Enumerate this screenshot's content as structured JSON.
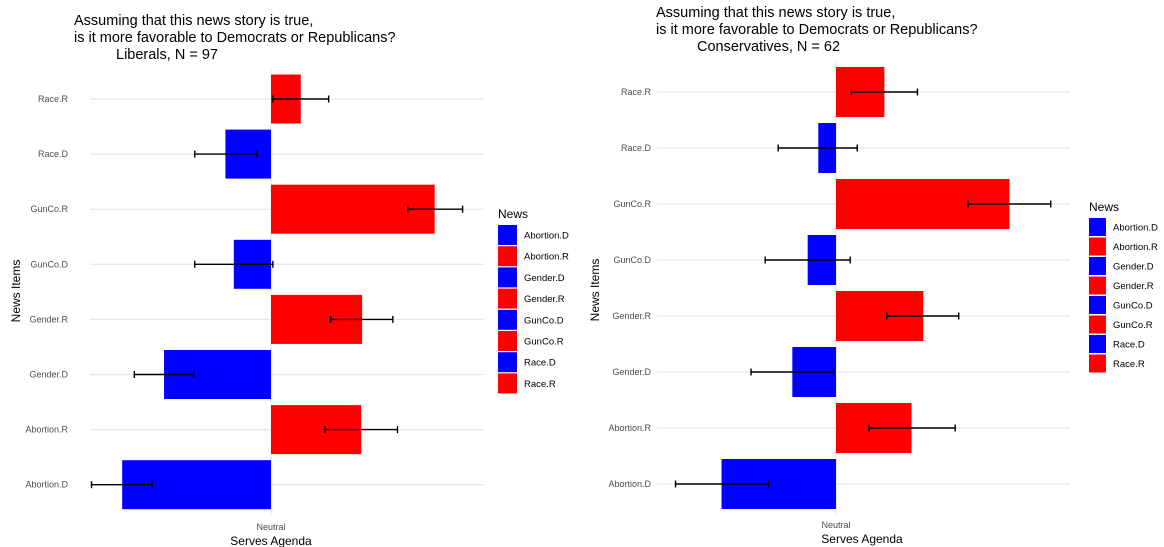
{
  "colors": {
    "D": "#0000FF",
    "R": "#FF0000",
    "grid": "#E6E6E6",
    "axis_text": "#4D4D4D",
    "errorbar": "#000000"
  },
  "chart_data": [
    {
      "type": "bar",
      "orientation": "horizontal",
      "title": [
        "Assuming that this news story is true,",
        "is it more favorable to Democrats or Republicans?",
        "Liberals, N = 97"
      ],
      "xlabel": "Serves Agenda",
      "ylabel": "News Items",
      "x_tick_labels": [
        "Neutral"
      ],
      "xlim": [
        -2.0,
        2.4
      ],
      "categories": [
        "Abortion.D",
        "Abortion.R",
        "Gender.D",
        "Gender.R",
        "GunCo.D",
        "GunCo.R",
        "Race.D",
        "Race.R"
      ],
      "values": [
        -1.6,
        0.97,
        -1.15,
        0.98,
        -0.4,
        1.76,
        -0.49,
        0.32
      ],
      "error_low": [
        -1.93,
        0.58,
        -1.47,
        0.64,
        -0.82,
        1.47,
        -0.82,
        0.02
      ],
      "error_high": [
        -1.28,
        1.36,
        -0.83,
        1.31,
        0.02,
        2.06,
        -0.15,
        0.62
      ],
      "grid": true,
      "legend": {
        "title": "News",
        "placement": "right",
        "entries": [
          "Abortion.D",
          "Abortion.R",
          "Gender.D",
          "Gender.R",
          "GunCo.D",
          "GunCo.R",
          "Race.D",
          "Race.R"
        ]
      }
    },
    {
      "type": "bar",
      "orientation": "horizontal",
      "title": [
        "Assuming that this news story is true,",
        "is it more favorable to Democrats or Republicans?",
        "Conservatives, N = 62"
      ],
      "xlabel": "Serves Agenda",
      "ylabel": "News Items",
      "x_tick_labels": [
        "Neutral"
      ],
      "xlim": [
        -2.0,
        2.4
      ],
      "categories": [
        "Abortion.D",
        "Abortion.R",
        "Gender.D",
        "Gender.R",
        "GunCo.D",
        "GunCo.R",
        "Race.D",
        "Race.R"
      ],
      "values": [
        -0.97,
        0.64,
        -0.37,
        0.74,
        -0.24,
        1.47,
        -0.15,
        0.41
      ],
      "error_low": [
        -1.36,
        0.28,
        -0.72,
        0.43,
        -0.6,
        1.12,
        -0.49,
        0.13
      ],
      "error_high": [
        -0.57,
        1.01,
        -0.02,
        1.04,
        0.12,
        1.82,
        0.18,
        0.69
      ],
      "grid": true,
      "legend": {
        "title": "News",
        "placement": "right",
        "entries": [
          "Abortion.D",
          "Abortion.R",
          "Gender.D",
          "Gender.R",
          "GunCo.D",
          "GunCo.R",
          "Race.D",
          "Race.R"
        ]
      }
    }
  ]
}
